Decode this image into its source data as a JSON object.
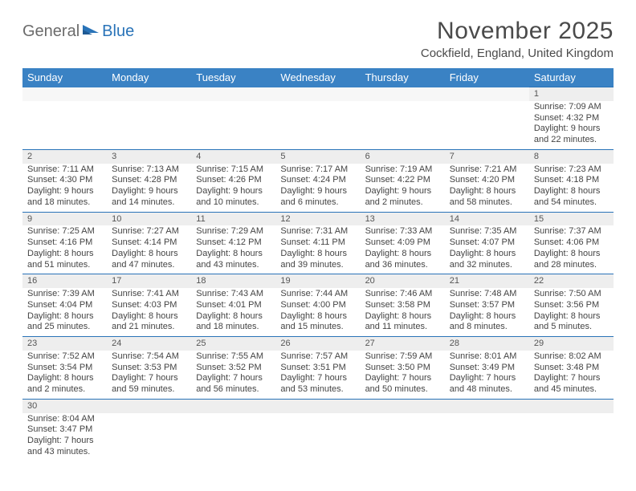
{
  "logo": {
    "part1": "General",
    "part2": "Blue"
  },
  "title": "November 2025",
  "location": "Cockfield, England, United Kingdom",
  "header_bg": "#3a82c4",
  "accent": "#2973b8",
  "day_headers": [
    "Sunday",
    "Monday",
    "Tuesday",
    "Wednesday",
    "Thursday",
    "Friday",
    "Saturday"
  ],
  "weeks": [
    {
      "nums": [
        "",
        "",
        "",
        "",
        "",
        "",
        "1"
      ],
      "info": [
        null,
        null,
        null,
        null,
        null,
        null,
        {
          "sunrise": "Sunrise: 7:09 AM",
          "sunset": "Sunset: 4:32 PM",
          "day1": "Daylight: 9 hours",
          "day2": "and 22 minutes."
        }
      ]
    },
    {
      "nums": [
        "2",
        "3",
        "4",
        "5",
        "6",
        "7",
        "8"
      ],
      "info": [
        {
          "sunrise": "Sunrise: 7:11 AM",
          "sunset": "Sunset: 4:30 PM",
          "day1": "Daylight: 9 hours",
          "day2": "and 18 minutes."
        },
        {
          "sunrise": "Sunrise: 7:13 AM",
          "sunset": "Sunset: 4:28 PM",
          "day1": "Daylight: 9 hours",
          "day2": "and 14 minutes."
        },
        {
          "sunrise": "Sunrise: 7:15 AM",
          "sunset": "Sunset: 4:26 PM",
          "day1": "Daylight: 9 hours",
          "day2": "and 10 minutes."
        },
        {
          "sunrise": "Sunrise: 7:17 AM",
          "sunset": "Sunset: 4:24 PM",
          "day1": "Daylight: 9 hours",
          "day2": "and 6 minutes."
        },
        {
          "sunrise": "Sunrise: 7:19 AM",
          "sunset": "Sunset: 4:22 PM",
          "day1": "Daylight: 9 hours",
          "day2": "and 2 minutes."
        },
        {
          "sunrise": "Sunrise: 7:21 AM",
          "sunset": "Sunset: 4:20 PM",
          "day1": "Daylight: 8 hours",
          "day2": "and 58 minutes."
        },
        {
          "sunrise": "Sunrise: 7:23 AM",
          "sunset": "Sunset: 4:18 PM",
          "day1": "Daylight: 8 hours",
          "day2": "and 54 minutes."
        }
      ]
    },
    {
      "nums": [
        "9",
        "10",
        "11",
        "12",
        "13",
        "14",
        "15"
      ],
      "info": [
        {
          "sunrise": "Sunrise: 7:25 AM",
          "sunset": "Sunset: 4:16 PM",
          "day1": "Daylight: 8 hours",
          "day2": "and 51 minutes."
        },
        {
          "sunrise": "Sunrise: 7:27 AM",
          "sunset": "Sunset: 4:14 PM",
          "day1": "Daylight: 8 hours",
          "day2": "and 47 minutes."
        },
        {
          "sunrise": "Sunrise: 7:29 AM",
          "sunset": "Sunset: 4:12 PM",
          "day1": "Daylight: 8 hours",
          "day2": "and 43 minutes."
        },
        {
          "sunrise": "Sunrise: 7:31 AM",
          "sunset": "Sunset: 4:11 PM",
          "day1": "Daylight: 8 hours",
          "day2": "and 39 minutes."
        },
        {
          "sunrise": "Sunrise: 7:33 AM",
          "sunset": "Sunset: 4:09 PM",
          "day1": "Daylight: 8 hours",
          "day2": "and 36 minutes."
        },
        {
          "sunrise": "Sunrise: 7:35 AM",
          "sunset": "Sunset: 4:07 PM",
          "day1": "Daylight: 8 hours",
          "day2": "and 32 minutes."
        },
        {
          "sunrise": "Sunrise: 7:37 AM",
          "sunset": "Sunset: 4:06 PM",
          "day1": "Daylight: 8 hours",
          "day2": "and 28 minutes."
        }
      ]
    },
    {
      "nums": [
        "16",
        "17",
        "18",
        "19",
        "20",
        "21",
        "22"
      ],
      "info": [
        {
          "sunrise": "Sunrise: 7:39 AM",
          "sunset": "Sunset: 4:04 PM",
          "day1": "Daylight: 8 hours",
          "day2": "and 25 minutes."
        },
        {
          "sunrise": "Sunrise: 7:41 AM",
          "sunset": "Sunset: 4:03 PM",
          "day1": "Daylight: 8 hours",
          "day2": "and 21 minutes."
        },
        {
          "sunrise": "Sunrise: 7:43 AM",
          "sunset": "Sunset: 4:01 PM",
          "day1": "Daylight: 8 hours",
          "day2": "and 18 minutes."
        },
        {
          "sunrise": "Sunrise: 7:44 AM",
          "sunset": "Sunset: 4:00 PM",
          "day1": "Daylight: 8 hours",
          "day2": "and 15 minutes."
        },
        {
          "sunrise": "Sunrise: 7:46 AM",
          "sunset": "Sunset: 3:58 PM",
          "day1": "Daylight: 8 hours",
          "day2": "and 11 minutes."
        },
        {
          "sunrise": "Sunrise: 7:48 AM",
          "sunset": "Sunset: 3:57 PM",
          "day1": "Daylight: 8 hours",
          "day2": "and 8 minutes."
        },
        {
          "sunrise": "Sunrise: 7:50 AM",
          "sunset": "Sunset: 3:56 PM",
          "day1": "Daylight: 8 hours",
          "day2": "and 5 minutes."
        }
      ]
    },
    {
      "nums": [
        "23",
        "24",
        "25",
        "26",
        "27",
        "28",
        "29"
      ],
      "info": [
        {
          "sunrise": "Sunrise: 7:52 AM",
          "sunset": "Sunset: 3:54 PM",
          "day1": "Daylight: 8 hours",
          "day2": "and 2 minutes."
        },
        {
          "sunrise": "Sunrise: 7:54 AM",
          "sunset": "Sunset: 3:53 PM",
          "day1": "Daylight: 7 hours",
          "day2": "and 59 minutes."
        },
        {
          "sunrise": "Sunrise: 7:55 AM",
          "sunset": "Sunset: 3:52 PM",
          "day1": "Daylight: 7 hours",
          "day2": "and 56 minutes."
        },
        {
          "sunrise": "Sunrise: 7:57 AM",
          "sunset": "Sunset: 3:51 PM",
          "day1": "Daylight: 7 hours",
          "day2": "and 53 minutes."
        },
        {
          "sunrise": "Sunrise: 7:59 AM",
          "sunset": "Sunset: 3:50 PM",
          "day1": "Daylight: 7 hours",
          "day2": "and 50 minutes."
        },
        {
          "sunrise": "Sunrise: 8:01 AM",
          "sunset": "Sunset: 3:49 PM",
          "day1": "Daylight: 7 hours",
          "day2": "and 48 minutes."
        },
        {
          "sunrise": "Sunrise: 8:02 AM",
          "sunset": "Sunset: 3:48 PM",
          "day1": "Daylight: 7 hours",
          "day2": "and 45 minutes."
        }
      ]
    },
    {
      "nums": [
        "30",
        "",
        "",
        "",
        "",
        "",
        ""
      ],
      "info": [
        {
          "sunrise": "Sunrise: 8:04 AM",
          "sunset": "Sunset: 3:47 PM",
          "day1": "Daylight: 7 hours",
          "day2": "and 43 minutes."
        },
        null,
        null,
        null,
        null,
        null,
        null
      ]
    }
  ]
}
